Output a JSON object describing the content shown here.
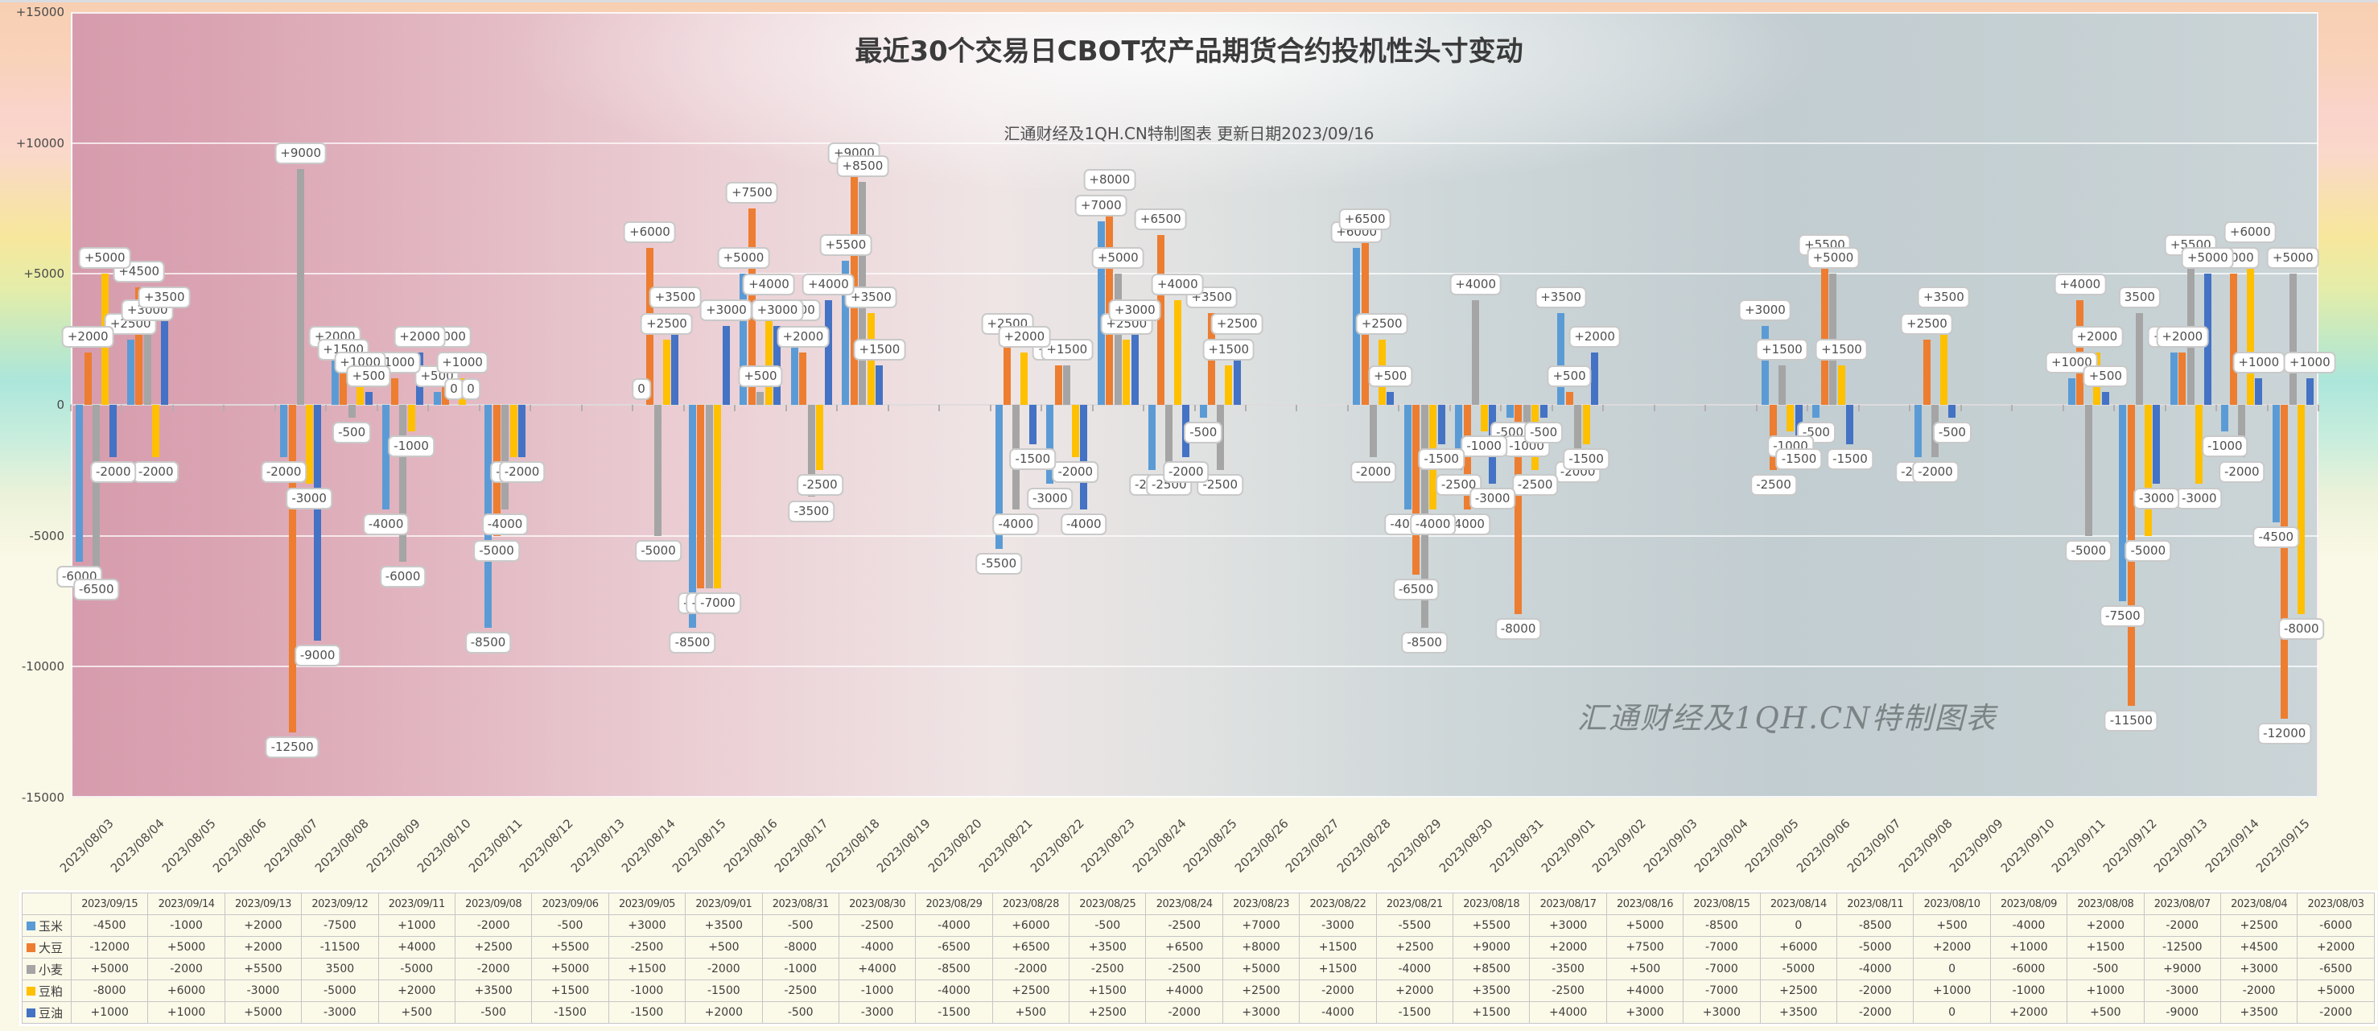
{
  "header": {
    "title": "最近30个交易日CBOT农产品期货合约投机性头寸变动",
    "subtitle": "汇通财经及1QH.CN特制图表  更新日期2023/09/16",
    "watermark": "汇通财经及1QH.CN特制图表"
  },
  "chart_data": {
    "type": "bar",
    "title": "最近30个交易日CBOT农产品期货合约投机性头寸变动",
    "subtitle": "汇通财经及1QH.CN特制图表  更新日期2023/09/16",
    "ylim": [
      -15000,
      15000
    ],
    "ytick_step": 5000,
    "ytick_labels": [
      "+15000",
      "+10000",
      "+5000",
      "0",
      "-5000",
      "-10000",
      "-15000"
    ],
    "grid": true,
    "legend_position": "table-left",
    "axis_dates": [
      "2023/08/03",
      "2023/08/04",
      "2023/08/05",
      "2023/08/06",
      "2023/08/07",
      "2023/08/08",
      "2023/08/09",
      "2023/08/10",
      "2023/08/11",
      "2023/08/12",
      "2023/08/13",
      "2023/08/14",
      "2023/08/15",
      "2023/08/16",
      "2023/08/17",
      "2023/08/18",
      "2023/08/19",
      "2023/08/20",
      "2023/08/21",
      "2023/08/22",
      "2023/08/23",
      "2023/08/24",
      "2023/08/25",
      "2023/08/26",
      "2023/08/27",
      "2023/08/28",
      "2023/08/29",
      "2023/08/30",
      "2023/08/31",
      "2023/09/01",
      "2023/09/02",
      "2023/09/03",
      "2023/09/04",
      "2023/09/05",
      "2023/09/06",
      "2023/09/07",
      "2023/09/08",
      "2023/09/09",
      "2023/09/10",
      "2023/09/11",
      "2023/09/12",
      "2023/09/13",
      "2023/09/14",
      "2023/09/15"
    ],
    "dates_desc": [
      "2023/09/15",
      "2023/09/14",
      "2023/09/13",
      "2023/09/12",
      "2023/09/11",
      "2023/09/08",
      "2023/09/06",
      "2023/09/05",
      "2023/09/01",
      "2023/08/31",
      "2023/08/30",
      "2023/08/29",
      "2023/08/28",
      "2023/08/25",
      "2023/08/24",
      "2023/08/23",
      "2023/08/22",
      "2023/08/21",
      "2023/08/18",
      "2023/08/17",
      "2023/08/16",
      "2023/08/15",
      "2023/08/14",
      "2023/08/11",
      "2023/08/10",
      "2023/08/09",
      "2023/08/08",
      "2023/08/07",
      "2023/08/04",
      "2023/08/03"
    ],
    "series": [
      {
        "name": "玉米",
        "color": "#5B9BD5",
        "values_desc": [
          "-4500",
          "-1000",
          "+2000",
          "-7500",
          "+1000",
          "-2000",
          "-500",
          "+3000",
          "+3500",
          "-500",
          "-2500",
          "-4000",
          "+6000",
          "-500",
          "-2500",
          "+7000",
          "-3000",
          "-5500",
          "+5500",
          "+3000",
          "+5000",
          "-8500",
          "0",
          "-8500",
          "+500",
          "-4000",
          "+2000",
          "-2000",
          "+2500",
          "-6000"
        ]
      },
      {
        "name": "大豆",
        "color": "#ED7D31",
        "values_desc": [
          "-12000",
          "+5000",
          "+2000",
          "-11500",
          "+4000",
          "+2500",
          "+5500",
          "-2500",
          "+500",
          "-8000",
          "-4000",
          "-6500",
          "+6500",
          "+3500",
          "+6500",
          "+8000",
          "+1500",
          "+2500",
          "+9000",
          "+2000",
          "+7500",
          "-7000",
          "+6000",
          "-5000",
          "+2000",
          "+1000",
          "+1500",
          "-12500",
          "+4500",
          "+2000"
        ]
      },
      {
        "name": "小麦",
        "color": "#A5A5A5",
        "values_desc": [
          "+5000",
          "-2000",
          "+5500",
          "3500",
          "-5000",
          "-2000",
          "+5000",
          "+1500",
          "-2000",
          "-1000",
          "+4000",
          "-8500",
          "-2000",
          "-2500",
          "-2500",
          "+5000",
          "+1500",
          "-4000",
          "+8500",
          "-3500",
          "+500",
          "-7000",
          "-5000",
          "-4000",
          "0",
          "-6000",
          "-500",
          "+9000",
          "+3000",
          "-6500"
        ]
      },
      {
        "name": "豆粕",
        "color": "#FFC000",
        "values_desc": [
          "-8000",
          "+6000",
          "-3000",
          "-5000",
          "+2000",
          "+3500",
          "+1500",
          "-1000",
          "-1500",
          "-2500",
          "-1000",
          "-4000",
          "+2500",
          "+1500",
          "+4000",
          "+2500",
          "-2000",
          "+2000",
          "+3500",
          "-2500",
          "+4000",
          "-7000",
          "+2500",
          "-2000",
          "+1000",
          "-1000",
          "+1000",
          "-3000",
          "-2000",
          "+5000"
        ]
      },
      {
        "name": "豆油",
        "color": "#4472C4",
        "values_desc": [
          "+1000",
          "+1000",
          "+5000",
          "-3000",
          "+500",
          "-500",
          "-1500",
          "-1500",
          "+2000",
          "-500",
          "-3000",
          "-1500",
          "+500",
          "+2500",
          "-2000",
          "+3000",
          "-4000",
          "-1500",
          "+1500",
          "+4000",
          "+3000",
          "+3000",
          "+3500",
          "-2000",
          "0",
          "+2000",
          "+500",
          "-9000",
          "+3500",
          "-2000"
        ]
      }
    ]
  }
}
